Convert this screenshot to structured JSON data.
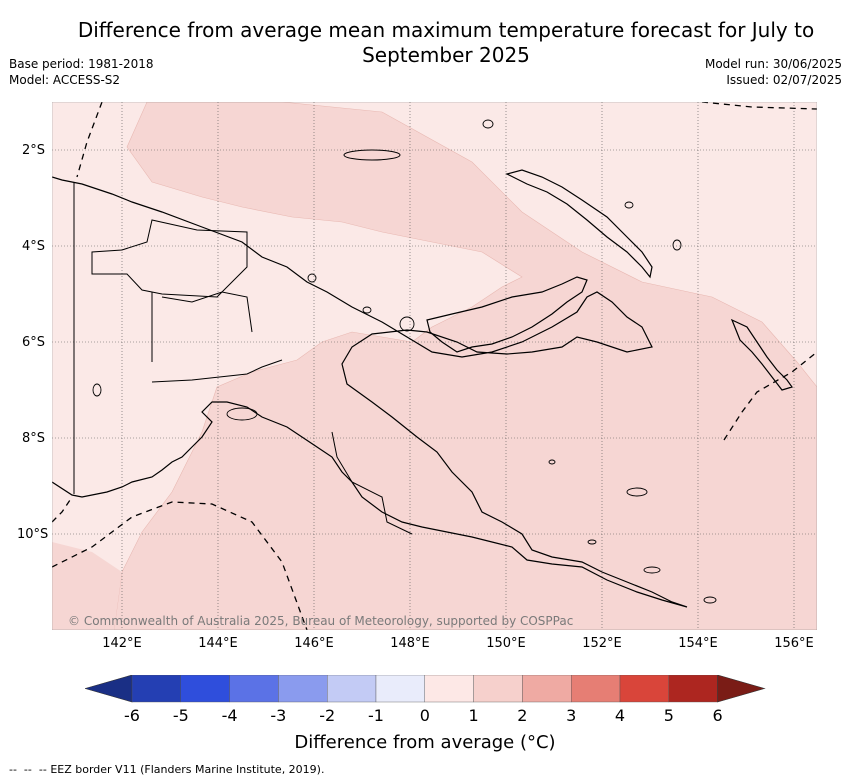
{
  "title": "Difference from average mean maximum temperature forecast for July to September 2025",
  "base_period": "Base period: 1981-2018",
  "model": "Model: ACCESS-S2",
  "model_run": "Model run: 30/06/2025",
  "issued": "Issued: 02/07/2025",
  "lat_ticks": [
    "2°S",
    "4°S",
    "6°S",
    "8°S",
    "10°S"
  ],
  "lon_ticks": [
    "142°E",
    "144°E",
    "146°E",
    "148°E",
    "150°E",
    "152°E",
    "154°E",
    "156°E"
  ],
  "credit": "© Commonwealth of Australia 2025, Bureau of Meteorology, supported by COSPPac",
  "colorbar": {
    "labels": [
      "-6",
      "-5",
      "-4",
      "-3",
      "-2",
      "-1",
      "0",
      "1",
      "2",
      "3",
      "4",
      "5",
      "6"
    ],
    "colors": [
      "#1a2f85",
      "#243fb3",
      "#2f4edc",
      "#5b72e6",
      "#8a9bee",
      "#c3cbf5",
      "#e9ecfb",
      "#fde8e6",
      "#f6d0cc",
      "#efaaa3",
      "#e67e74",
      "#d9453a",
      "#ad2620",
      "#7a1c16"
    ],
    "title": "Difference from average (°C)"
  },
  "legend_footnote": "EEZ border V11 (Flanders Marine Institute, 2019).",
  "map": {
    "region": "Papua New Guinea",
    "lat_range": [
      -12,
      -1
    ],
    "lon_range": [
      140.5,
      156.5
    ],
    "fill_colors": {
      "zero_to_one": "#fbe9e7",
      "one_to_two": "#f6d6d3"
    },
    "grid": "dotted"
  }
}
